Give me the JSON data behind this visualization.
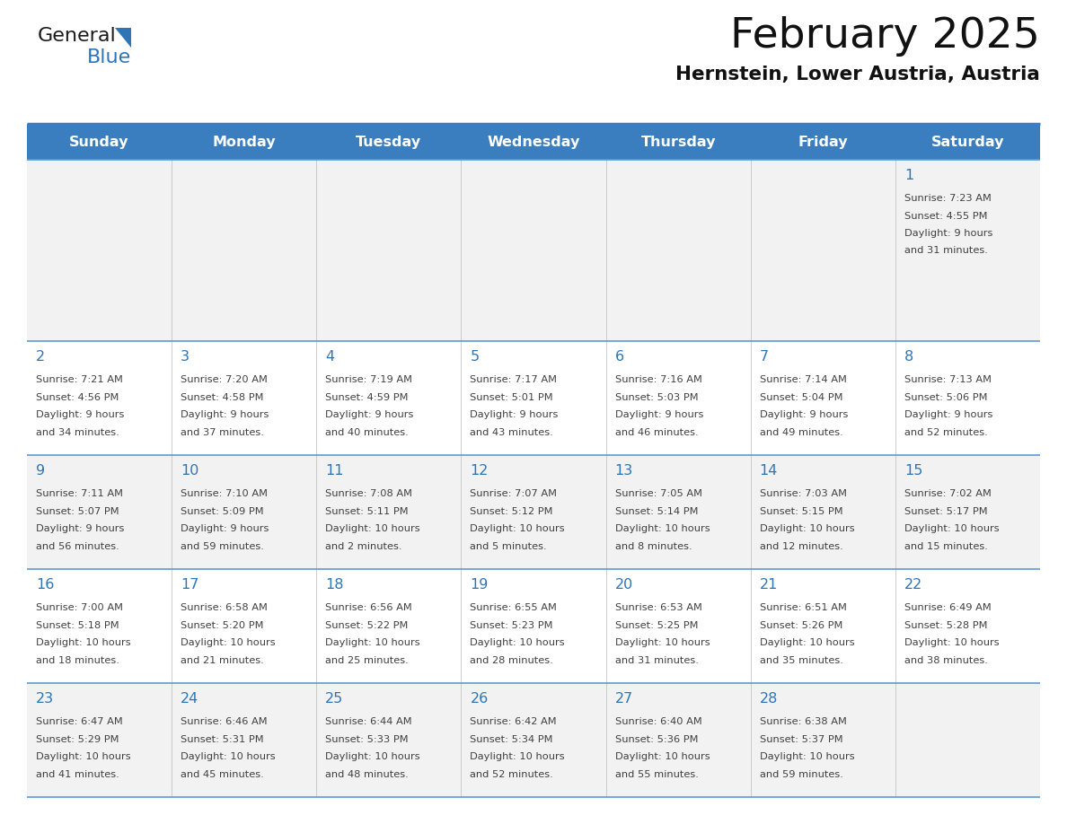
{
  "title": "February 2025",
  "subtitle": "Hernstein, Lower Austria, Austria",
  "header_bg": "#3A7EBF",
  "header_text_color": "#FFFFFF",
  "day_names": [
    "Sunday",
    "Monday",
    "Tuesday",
    "Wednesday",
    "Thursday",
    "Friday",
    "Saturday"
  ],
  "cell_bg_odd": "#F2F2F2",
  "cell_bg_even": "#FFFFFF",
  "border_color_header": "#3A7EBF",
  "border_color_row": "#5B9BD5",
  "text_color": "#404040",
  "date_color": "#2E75B6",
  "logo_dark_color": "#1a1a1a",
  "logo_blue_color": "#2E75B6",
  "calendar_data": [
    [
      null,
      null,
      null,
      null,
      null,
      null,
      {
        "day": 1,
        "sunrise": "7:23 AM",
        "sunset": "4:55 PM",
        "daylight": "9 hours\nand 31 minutes."
      }
    ],
    [
      {
        "day": 2,
        "sunrise": "7:21 AM",
        "sunset": "4:56 PM",
        "daylight": "9 hours\nand 34 minutes."
      },
      {
        "day": 3,
        "sunrise": "7:20 AM",
        "sunset": "4:58 PM",
        "daylight": "9 hours\nand 37 minutes."
      },
      {
        "day": 4,
        "sunrise": "7:19 AM",
        "sunset": "4:59 PM",
        "daylight": "9 hours\nand 40 minutes."
      },
      {
        "day": 5,
        "sunrise": "7:17 AM",
        "sunset": "5:01 PM",
        "daylight": "9 hours\nand 43 minutes."
      },
      {
        "day": 6,
        "sunrise": "7:16 AM",
        "sunset": "5:03 PM",
        "daylight": "9 hours\nand 46 minutes."
      },
      {
        "day": 7,
        "sunrise": "7:14 AM",
        "sunset": "5:04 PM",
        "daylight": "9 hours\nand 49 minutes."
      },
      {
        "day": 8,
        "sunrise": "7:13 AM",
        "sunset": "5:06 PM",
        "daylight": "9 hours\nand 52 minutes."
      }
    ],
    [
      {
        "day": 9,
        "sunrise": "7:11 AM",
        "sunset": "5:07 PM",
        "daylight": "9 hours\nand 56 minutes."
      },
      {
        "day": 10,
        "sunrise": "7:10 AM",
        "sunset": "5:09 PM",
        "daylight": "9 hours\nand 59 minutes."
      },
      {
        "day": 11,
        "sunrise": "7:08 AM",
        "sunset": "5:11 PM",
        "daylight": "10 hours\nand 2 minutes."
      },
      {
        "day": 12,
        "sunrise": "7:07 AM",
        "sunset": "5:12 PM",
        "daylight": "10 hours\nand 5 minutes."
      },
      {
        "day": 13,
        "sunrise": "7:05 AM",
        "sunset": "5:14 PM",
        "daylight": "10 hours\nand 8 minutes."
      },
      {
        "day": 14,
        "sunrise": "7:03 AM",
        "sunset": "5:15 PM",
        "daylight": "10 hours\nand 12 minutes."
      },
      {
        "day": 15,
        "sunrise": "7:02 AM",
        "sunset": "5:17 PM",
        "daylight": "10 hours\nand 15 minutes."
      }
    ],
    [
      {
        "day": 16,
        "sunrise": "7:00 AM",
        "sunset": "5:18 PM",
        "daylight": "10 hours\nand 18 minutes."
      },
      {
        "day": 17,
        "sunrise": "6:58 AM",
        "sunset": "5:20 PM",
        "daylight": "10 hours\nand 21 minutes."
      },
      {
        "day": 18,
        "sunrise": "6:56 AM",
        "sunset": "5:22 PM",
        "daylight": "10 hours\nand 25 minutes."
      },
      {
        "day": 19,
        "sunrise": "6:55 AM",
        "sunset": "5:23 PM",
        "daylight": "10 hours\nand 28 minutes."
      },
      {
        "day": 20,
        "sunrise": "6:53 AM",
        "sunset": "5:25 PM",
        "daylight": "10 hours\nand 31 minutes."
      },
      {
        "day": 21,
        "sunrise": "6:51 AM",
        "sunset": "5:26 PM",
        "daylight": "10 hours\nand 35 minutes."
      },
      {
        "day": 22,
        "sunrise": "6:49 AM",
        "sunset": "5:28 PM",
        "daylight": "10 hours\nand 38 minutes."
      }
    ],
    [
      {
        "day": 23,
        "sunrise": "6:47 AM",
        "sunset": "5:29 PM",
        "daylight": "10 hours\nand 41 minutes."
      },
      {
        "day": 24,
        "sunrise": "6:46 AM",
        "sunset": "5:31 PM",
        "daylight": "10 hours\nand 45 minutes."
      },
      {
        "day": 25,
        "sunrise": "6:44 AM",
        "sunset": "5:33 PM",
        "daylight": "10 hours\nand 48 minutes."
      },
      {
        "day": 26,
        "sunrise": "6:42 AM",
        "sunset": "5:34 PM",
        "daylight": "10 hours\nand 52 minutes."
      },
      {
        "day": 27,
        "sunrise": "6:40 AM",
        "sunset": "5:36 PM",
        "daylight": "10 hours\nand 55 minutes."
      },
      {
        "day": 28,
        "sunrise": "6:38 AM",
        "sunset": "5:37 PM",
        "daylight": "10 hours\nand 59 minutes."
      },
      null
    ]
  ]
}
